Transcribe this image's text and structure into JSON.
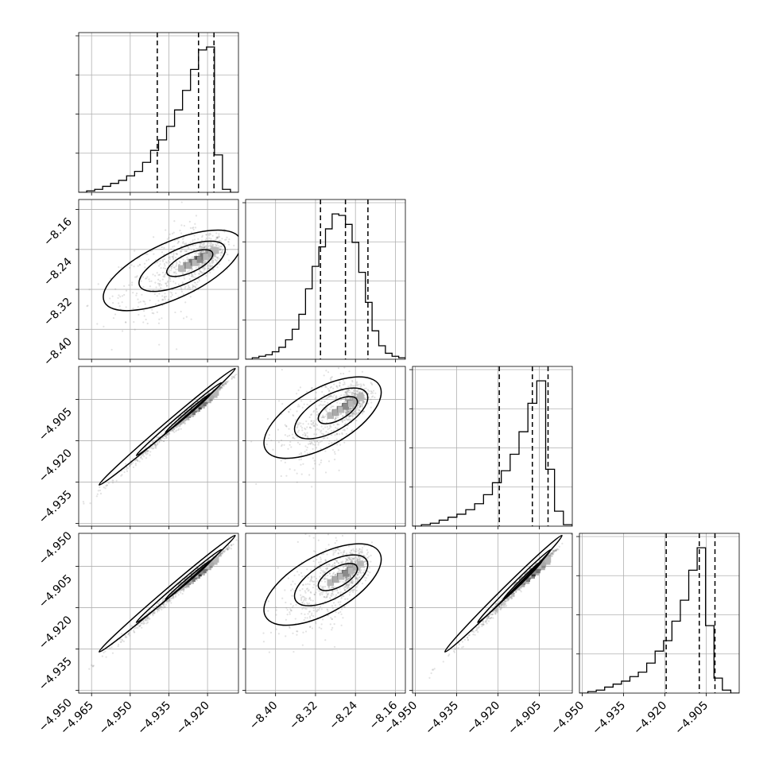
{
  "chart_data": {
    "type": "corner",
    "n_params": 4,
    "params": [
      {
        "name": "",
        "range": [
          -4.97,
          -4.908
        ],
        "ticks": [
          -4.965,
          -4.95,
          -4.935,
          -4.92
        ],
        "tick_labels": [
          "−4.965",
          "−4.950",
          "−4.935",
          "−4.920"
        ],
        "median": -4.9235,
        "q16": -4.9395,
        "q84": -4.9175
      },
      {
        "name": "",
        "range": [
          -8.46,
          -8.14
        ],
        "ticks": [
          -8.4,
          -8.32,
          -8.24,
          -8.16
        ],
        "tick_labels": [
          "−8.40",
          "−8.32",
          "−8.24",
          "−8.16"
        ],
        "median": -8.26,
        "q16": -8.31,
        "q84": -8.215
      },
      {
        "name": "",
        "range": [
          -4.951,
          -4.893
        ],
        "ticks": [
          -4.95,
          -4.935,
          -4.92,
          -4.905
        ],
        "tick_labels": [
          "−4.950",
          "−4.935",
          "−4.920",
          "−4.905"
        ],
        "median": -4.9075,
        "q16": -4.9195,
        "q84": -4.9018
      },
      {
        "name": "",
        "range": [
          -4.951,
          -4.893
        ],
        "ticks": [
          -4.95,
          -4.935,
          -4.92,
          -4.905
        ],
        "tick_labels": [
          "−4.950",
          "−4.935",
          "−4.920",
          "−4.905"
        ],
        "median": -4.9075,
        "q16": -4.9195,
        "q84": -4.9018
      }
    ],
    "histograms": [
      [
        0,
        1,
        2,
        4,
        6,
        8,
        11,
        14,
        20,
        28,
        35,
        44,
        55,
        68,
        82,
        95,
        97,
        25,
        2,
        0
      ],
      [
        0,
        1,
        2,
        3,
        5,
        8,
        13,
        20,
        30,
        47,
        62,
        75,
        87,
        97,
        96,
        90,
        78,
        58,
        38,
        19,
        9,
        4,
        2,
        1
      ],
      [
        0,
        1,
        2,
        4,
        6,
        8,
        11,
        15,
        21,
        29,
        37,
        48,
        63,
        82,
        97,
        38,
        10,
        1
      ],
      [
        0,
        1,
        2,
        4,
        6,
        8,
        11,
        14,
        20,
        28,
        35,
        48,
        62,
        82,
        97,
        45,
        10,
        2,
        0
      ]
    ],
    "grid": true,
    "contour_levels": 3,
    "quantile_lines": "dashed"
  }
}
